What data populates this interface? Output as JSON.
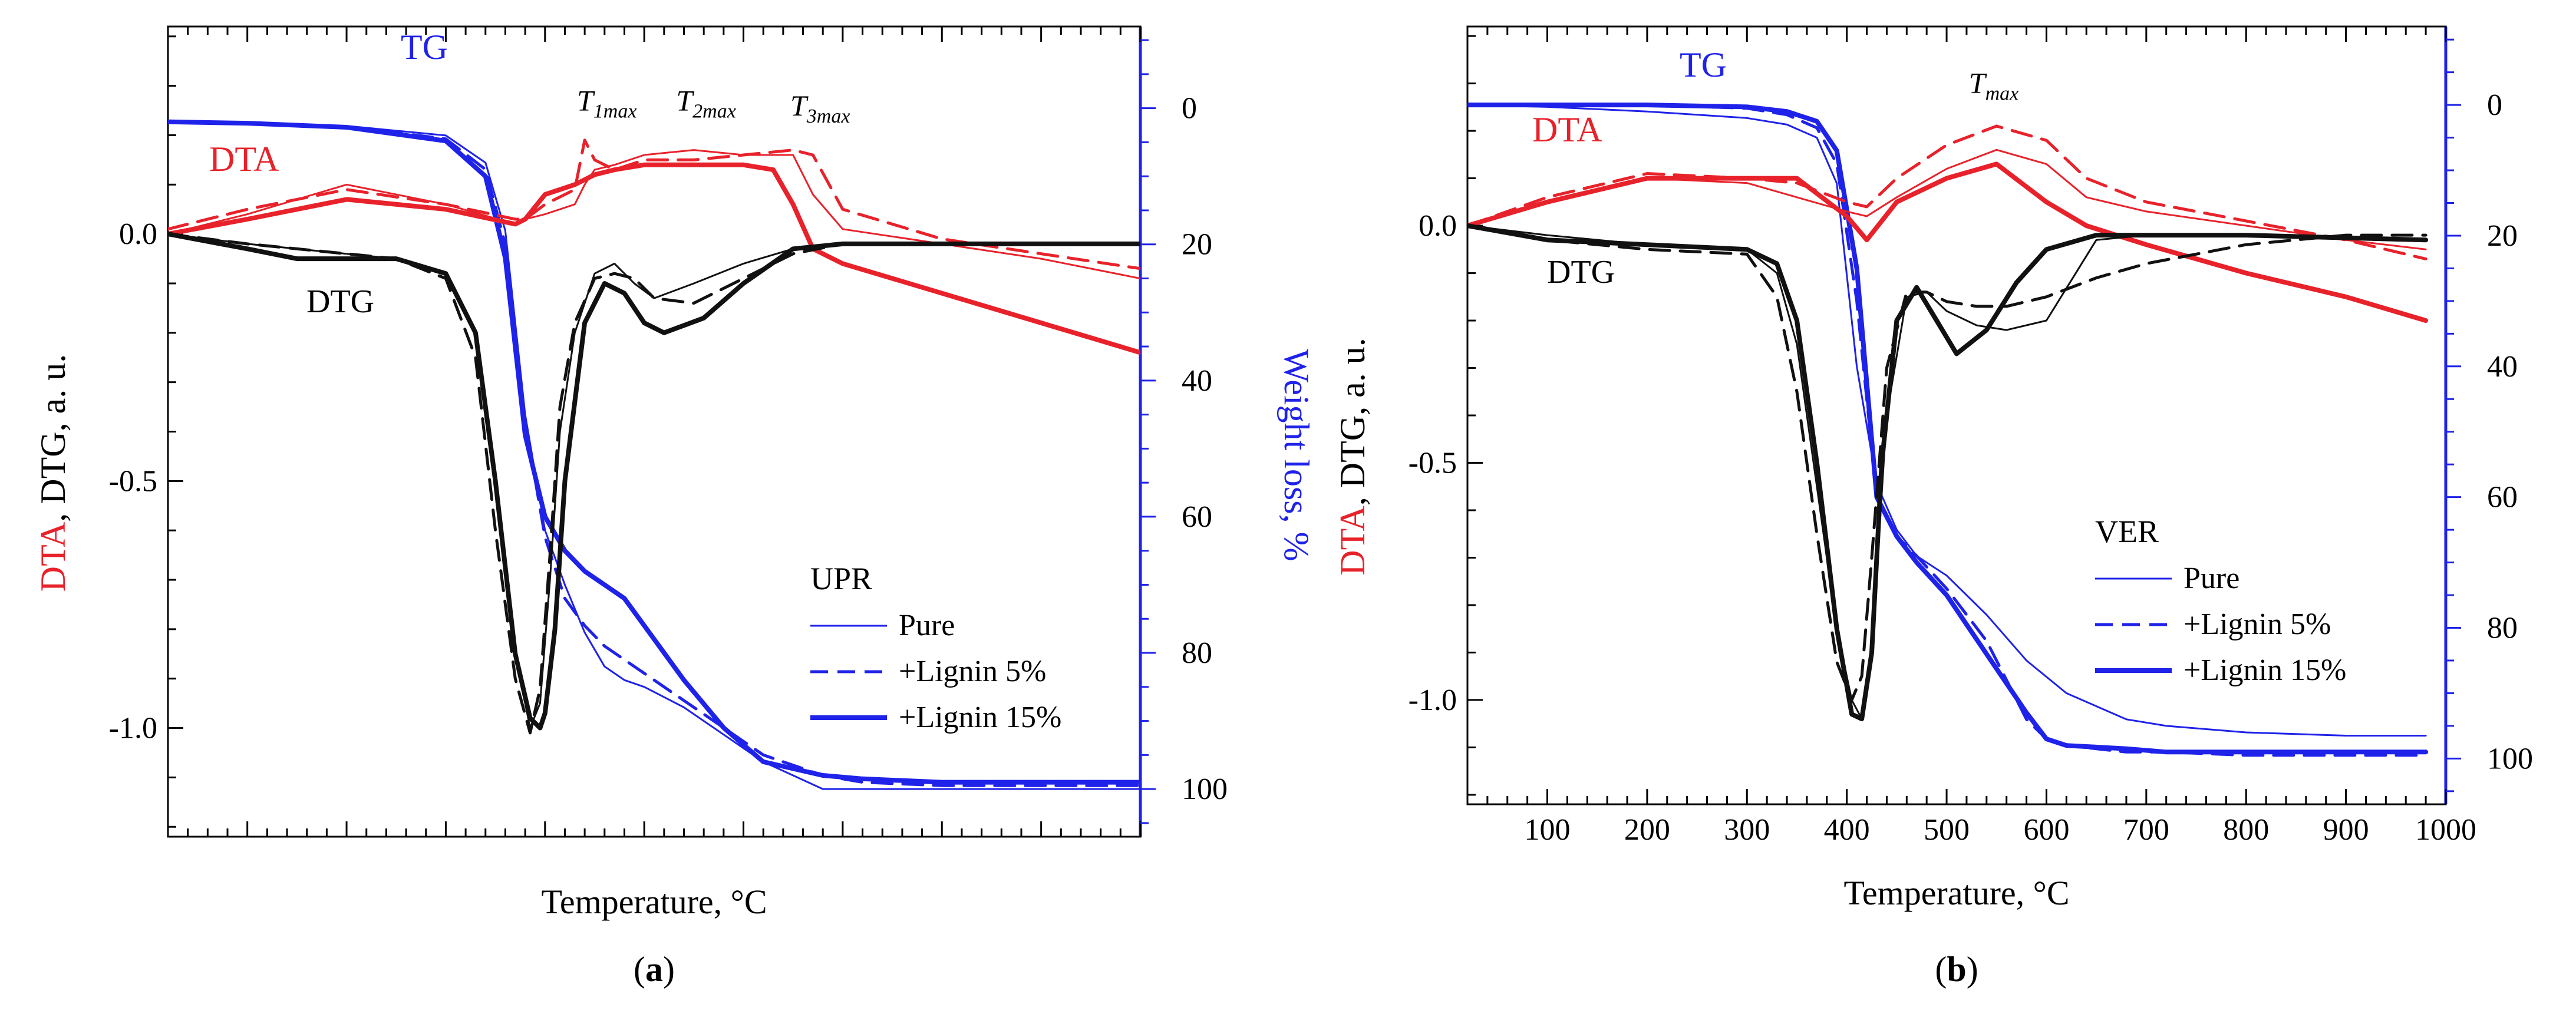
{
  "figure": {
    "colors": {
      "dta": "#e8222b",
      "tg": "#1f22e8",
      "dtg": "#111111",
      "axis": "#000000"
    },
    "line_style_legend": [
      "solid thin",
      "dashed",
      "solid thick"
    ]
  },
  "chart_data": [
    {
      "type": "line",
      "panel_label": "(a)",
      "panel_letter": "a",
      "xlabel": "Temperature, °C",
      "ylabel_left": {
        "parts": [
          "DTA",
          ", ",
          "DTG",
          ", a. u."
        ]
      },
      "ylabel_right": "Weight loss, %",
      "xlim": [
        20,
        1000
      ],
      "ylim_left": [
        -1.22,
        0.42
      ],
      "ylim_right": [
        107,
        -12
      ],
      "x_ticks": [],
      "y_ticks_left": [
        "0.0",
        "-0.5",
        "-1.0"
      ],
      "y_tick_values_left": [
        0.0,
        -0.5,
        -1.0
      ],
      "y_ticks_right": [
        "0",
        "20",
        "40",
        "60",
        "80",
        "100"
      ],
      "y_tick_values_right": [
        0,
        20,
        40,
        60,
        80,
        100
      ],
      "curve_labels": {
        "tg": "TG",
        "dta": "DTA",
        "dtg": "DTG"
      },
      "annotations": [
        {
          "text": "T",
          "sub": "1max",
          "x": 450,
          "y": 0.25
        },
        {
          "text": "T",
          "sub": "2max",
          "x": 550,
          "y": 0.25
        },
        {
          "text": "T",
          "sub": "3max",
          "x": 665,
          "y": 0.24
        }
      ],
      "legend": {
        "title": "UPR",
        "entries": [
          "Pure",
          "+Lignin 5%",
          "+Lignin 15%"
        ],
        "placement": "lower-right"
      },
      "series": [
        {
          "name": "Pure",
          "group": "TG",
          "axis": "right",
          "x": [
            20,
            100,
            200,
            300,
            340,
            360,
            380,
            400,
            420,
            440,
            460,
            480,
            500,
            540,
            580,
            620,
            680,
            720,
            800,
            1000
          ],
          "y": [
            2,
            2.2,
            2.6,
            4,
            8,
            18,
            45,
            62,
            70,
            77,
            82,
            84,
            85,
            88,
            92,
            96,
            100,
            100,
            100,
            100
          ]
        },
        {
          "name": "+Lignin 5%",
          "group": "TG",
          "axis": "right",
          "x": [
            20,
            100,
            200,
            300,
            340,
            360,
            380,
            400,
            420,
            440,
            460,
            480,
            500,
            540,
            580,
            620,
            680,
            720,
            800,
            1000
          ],
          "y": [
            2,
            2.2,
            2.7,
            4.5,
            9,
            20,
            46,
            63,
            72,
            76,
            79,
            81,
            83,
            87,
            91,
            95,
            98,
            99,
            99.5,
            99.5
          ]
        },
        {
          "name": "+Lignin 15%",
          "group": "TG",
          "axis": "right",
          "x": [
            20,
            100,
            200,
            300,
            340,
            360,
            380,
            400,
            420,
            440,
            460,
            480,
            500,
            540,
            580,
            620,
            680,
            720,
            800,
            1000
          ],
          "y": [
            2,
            2.2,
            2.8,
            4.8,
            10,
            22,
            48,
            60,
            65,
            68,
            70,
            72,
            76,
            84,
            91,
            96,
            98,
            98.5,
            99,
            99
          ]
        },
        {
          "name": "Pure",
          "group": "DTA",
          "axis": "left",
          "x": [
            20,
            100,
            200,
            300,
            370,
            380,
            400,
            430,
            440,
            450,
            470,
            500,
            550,
            600,
            650,
            670,
            700,
            800,
            900,
            1000
          ],
          "y": [
            0,
            0.04,
            0.1,
            0.06,
            0.02,
            0.03,
            0.04,
            0.06,
            0.1,
            0.13,
            0.14,
            0.16,
            0.17,
            0.16,
            0.16,
            0.08,
            0.01,
            -0.02,
            -0.05,
            -0.09
          ]
        },
        {
          "name": "+Lignin 5%",
          "group": "DTA",
          "axis": "left",
          "x": [
            20,
            100,
            200,
            300,
            370,
            380,
            400,
            430,
            440,
            450,
            470,
            500,
            550,
            600,
            650,
            670,
            700,
            800,
            900,
            1000
          ],
          "y": [
            0.01,
            0.05,
            0.09,
            0.06,
            0.03,
            0.03,
            0.06,
            0.09,
            0.19,
            0.15,
            0.13,
            0.15,
            0.15,
            0.16,
            0.17,
            0.16,
            0.05,
            -0.01,
            -0.04,
            -0.07
          ]
        },
        {
          "name": "+Lignin 15%",
          "group": "DTA",
          "axis": "left",
          "x": [
            20,
            100,
            200,
            300,
            370,
            380,
            400,
            430,
            440,
            450,
            470,
            500,
            550,
            600,
            630,
            650,
            670,
            700,
            800,
            900,
            1000
          ],
          "y": [
            0,
            0.03,
            0.07,
            0.05,
            0.02,
            0.03,
            0.08,
            0.1,
            0.11,
            0.12,
            0.13,
            0.14,
            0.14,
            0.14,
            0.13,
            0.06,
            -0.03,
            -0.06,
            -0.12,
            -0.18,
            -0.24
          ]
        },
        {
          "name": "Pure",
          "group": "DTG",
          "axis": "left",
          "x": [
            20,
            100,
            150,
            200,
            250,
            300,
            330,
            350,
            370,
            385,
            395,
            405,
            415,
            430,
            450,
            470,
            490,
            510,
            550,
            600,
            650,
            700,
            800,
            1000
          ],
          "y": [
            0,
            -0.02,
            -0.03,
            -0.04,
            -0.05,
            -0.08,
            -0.2,
            -0.5,
            -0.85,
            -1.0,
            -0.95,
            -0.7,
            -0.4,
            -0.2,
            -0.08,
            -0.06,
            -0.1,
            -0.13,
            -0.1,
            -0.06,
            -0.03,
            -0.02,
            -0.02,
            -0.02
          ]
        },
        {
          "name": "+Lignin 5%",
          "group": "DTG",
          "axis": "left",
          "x": [
            20,
            100,
            150,
            200,
            250,
            300,
            330,
            350,
            370,
            385,
            395,
            405,
            415,
            430,
            450,
            470,
            490,
            510,
            550,
            600,
            650,
            700,
            800,
            1000
          ],
          "y": [
            0,
            -0.02,
            -0.03,
            -0.04,
            -0.05,
            -0.09,
            -0.25,
            -0.6,
            -0.9,
            -1.01,
            -0.92,
            -0.65,
            -0.35,
            -0.18,
            -0.09,
            -0.08,
            -0.09,
            -0.13,
            -0.14,
            -0.09,
            -0.04,
            -0.02,
            -0.02,
            -0.02
          ]
        },
        {
          "name": "+Lignin 15%",
          "group": "DTG",
          "axis": "left",
          "x": [
            20,
            100,
            150,
            200,
            250,
            300,
            330,
            350,
            370,
            385,
            395,
            400,
            410,
            420,
            440,
            460,
            480,
            500,
            520,
            560,
            600,
            650,
            700,
            800,
            1000
          ],
          "y": [
            0,
            -0.03,
            -0.05,
            -0.05,
            -0.05,
            -0.08,
            -0.2,
            -0.5,
            -0.85,
            -0.98,
            -1.0,
            -0.97,
            -0.8,
            -0.5,
            -0.18,
            -0.1,
            -0.12,
            -0.18,
            -0.2,
            -0.17,
            -0.1,
            -0.03,
            -0.02,
            -0.02,
            -0.02
          ]
        }
      ]
    },
    {
      "type": "line",
      "panel_label": "(b)",
      "panel_letter": "b",
      "xlabel": "Temperature, °C",
      "ylabel_left": {
        "parts": [
          "DTA",
          ", ",
          "DTG",
          ", a. u."
        ]
      },
      "ylabel_right": "Weight loss, %",
      "xlim": [
        20,
        1000
      ],
      "ylim_left": [
        -1.22,
        0.42
      ],
      "ylim_right": [
        107,
        -12
      ],
      "x_ticks": [
        "100",
        "200",
        "300",
        "400",
        "500",
        "600",
        "700",
        "800",
        "900",
        "1000"
      ],
      "x_tick_values": [
        100,
        200,
        300,
        400,
        500,
        600,
        700,
        800,
        900,
        1000
      ],
      "y_ticks_left": [
        "0.0",
        "-0.5",
        "-1.0"
      ],
      "y_tick_values_left": [
        0.0,
        -0.5,
        -1.0
      ],
      "y_ticks_right": [
        "0",
        "20",
        "40",
        "60",
        "80",
        "100"
      ],
      "y_tick_values_right": [
        0,
        20,
        40,
        60,
        80,
        100
      ],
      "curve_labels": {
        "tg": "TG",
        "dta": "DTA",
        "dtg": "DTG"
      },
      "annotations": [
        {
          "text": "T",
          "sub": "max",
          "x": 540,
          "y": 0.28
        }
      ],
      "legend": {
        "title": "VER",
        "entries": [
          "Pure",
          "+Lignin 5%",
          "+Lignin 15%"
        ],
        "placement": "lower-right"
      },
      "series": [
        {
          "name": "Pure",
          "group": "TG",
          "axis": "right",
          "x": [
            20,
            100,
            200,
            300,
            340,
            370,
            390,
            410,
            430,
            450,
            470,
            500,
            540,
            580,
            620,
            680,
            720,
            800,
            900,
            980
          ],
          "y": [
            0,
            0.3,
            1,
            2,
            3,
            5,
            12,
            40,
            58,
            65,
            69,
            72,
            78,
            85,
            90,
            94,
            95,
            96,
            96.5,
            96.5
          ]
        },
        {
          "name": "+Lignin 5%",
          "group": "TG",
          "axis": "right",
          "x": [
            20,
            100,
            200,
            300,
            340,
            370,
            390,
            410,
            430,
            450,
            470,
            500,
            540,
            580,
            600,
            620,
            680,
            720,
            800,
            900,
            980
          ],
          "y": [
            0,
            0,
            0,
            0.5,
            1.5,
            3.5,
            9,
            30,
            60,
            66,
            69,
            74,
            82,
            94,
            97,
            98,
            99,
            99,
            99.5,
            99.5,
            99.5
          ]
        },
        {
          "name": "+Lignin 15%",
          "group": "TG",
          "axis": "right",
          "x": [
            20,
            100,
            200,
            300,
            340,
            370,
            390,
            410,
            430,
            450,
            470,
            500,
            540,
            580,
            600,
            620,
            680,
            720,
            800,
            900,
            980
          ],
          "y": [
            0,
            0,
            0,
            0.3,
            1,
            2.5,
            7,
            25,
            60,
            66,
            70,
            75,
            84,
            93,
            97,
            98,
            98.5,
            99,
            99,
            99,
            99
          ]
        },
        {
          "name": "Pure",
          "group": "DTA",
          "axis": "left",
          "x": [
            20,
            100,
            200,
            300,
            350,
            400,
            420,
            450,
            500,
            550,
            600,
            640,
            700,
            800,
            900,
            980
          ],
          "y": [
            0,
            0.05,
            0.1,
            0.09,
            0.06,
            0.03,
            0.02,
            0.06,
            0.12,
            0.16,
            0.13,
            0.06,
            0.03,
            0.0,
            -0.03,
            -0.05
          ]
        },
        {
          "name": "+Lignin 5%",
          "group": "DTA",
          "axis": "left",
          "x": [
            20,
            100,
            200,
            300,
            350,
            400,
            420,
            450,
            500,
            550,
            600,
            640,
            700,
            800,
            900,
            980
          ],
          "y": [
            0,
            0.06,
            0.11,
            0.1,
            0.09,
            0.05,
            0.04,
            0.1,
            0.17,
            0.21,
            0.18,
            0.1,
            0.05,
            0.01,
            -0.03,
            -0.07
          ]
        },
        {
          "name": "+Lignin 15%",
          "group": "DTA",
          "axis": "left",
          "x": [
            20,
            100,
            200,
            300,
            350,
            400,
            420,
            450,
            500,
            550,
            600,
            640,
            700,
            800,
            900,
            980
          ],
          "y": [
            0,
            0.05,
            0.1,
            0.1,
            0.1,
            0.02,
            -0.03,
            0.05,
            0.1,
            0.13,
            0.05,
            0.0,
            -0.04,
            -0.1,
            -0.15,
            -0.2
          ]
        },
        {
          "name": "Pure",
          "group": "DTG",
          "axis": "left",
          "x": [
            20,
            100,
            200,
            300,
            330,
            350,
            370,
            390,
            405,
            415,
            425,
            440,
            460,
            480,
            500,
            530,
            560,
            600,
            650,
            700,
            800,
            980
          ],
          "y": [
            0,
            -0.02,
            -0.04,
            -0.05,
            -0.1,
            -0.25,
            -0.55,
            -0.85,
            -1.0,
            -1.04,
            -0.9,
            -0.4,
            -0.15,
            -0.14,
            -0.18,
            -0.21,
            -0.22,
            -0.2,
            -0.03,
            -0.02,
            -0.02,
            -0.03
          ]
        },
        {
          "name": "+Lignin 5%",
          "group": "DTG",
          "axis": "left",
          "x": [
            20,
            100,
            200,
            300,
            330,
            350,
            370,
            390,
            405,
            415,
            425,
            440,
            460,
            480,
            500,
            530,
            560,
            600,
            650,
            700,
            800,
            900,
            980
          ],
          "y": [
            0,
            -0.03,
            -0.05,
            -0.06,
            -0.15,
            -0.35,
            -0.65,
            -0.92,
            -1.0,
            -0.95,
            -0.7,
            -0.3,
            -0.14,
            -0.14,
            -0.16,
            -0.17,
            -0.17,
            -0.15,
            -0.11,
            -0.08,
            -0.04,
            -0.02,
            -0.02
          ]
        },
        {
          "name": "+Lignin 15%",
          "group": "DTG",
          "axis": "left",
          "x": [
            20,
            100,
            200,
            300,
            330,
            350,
            370,
            390,
            405,
            415,
            425,
            435,
            450,
            470,
            490,
            510,
            540,
            570,
            600,
            650,
            700,
            800,
            980
          ],
          "y": [
            0,
            -0.03,
            -0.04,
            -0.05,
            -0.08,
            -0.2,
            -0.5,
            -0.85,
            -1.03,
            -1.04,
            -0.9,
            -0.5,
            -0.2,
            -0.13,
            -0.2,
            -0.27,
            -0.22,
            -0.12,
            -0.05,
            -0.02,
            -0.02,
            -0.02,
            -0.03
          ]
        }
      ]
    }
  ]
}
